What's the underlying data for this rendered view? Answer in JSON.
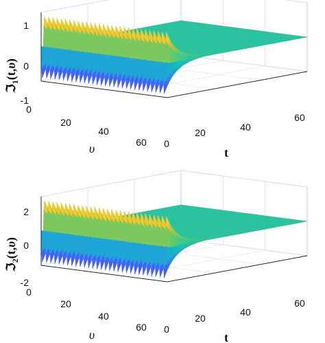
{
  "chart_data": [
    {
      "type": "surface",
      "panel": "top",
      "zlabel": "ℑ₁(t,υ)",
      "zlabel_main": "ℑ",
      "zlabel_sub": "1",
      "zlabel_args": "(t,",
      "zlabel_var": "υ",
      "zlabel_close": ")",
      "xlabel": "υ",
      "ylabel": "t",
      "xlim": [
        0,
        60
      ],
      "ylim": [
        0,
        60
      ],
      "zlim": [
        -1,
        1
      ],
      "x_ticks": [
        "20",
        "40",
        "60"
      ],
      "y_ticks": [
        "0",
        "20",
        "40",
        "60"
      ],
      "z_ticks": [
        "-1",
        "0",
        "1"
      ],
      "amplitude_at_t0": 0.9,
      "oscillation_periods": 30,
      "decay_time": 5,
      "grid": true,
      "colormap": "parula"
    },
    {
      "type": "surface",
      "panel": "bottom",
      "zlabel": "ℑ₂(t,υ)",
      "zlabel_main": "ℑ",
      "zlabel_sub": "2",
      "zlabel_args": "(t,",
      "zlabel_var": "υ",
      "zlabel_close": ")",
      "xlabel": "υ",
      "ylabel": "t",
      "xlim": [
        0,
        60
      ],
      "ylim": [
        0,
        60
      ],
      "zlim": [
        -2,
        2
      ],
      "x_ticks": [
        "20",
        "40",
        "60"
      ],
      "y_ticks": [
        "0",
        "20",
        "40",
        "60"
      ],
      "z_ticks": [
        "-2",
        "0",
        "2"
      ],
      "amplitude_at_t0": 1.8,
      "oscillation_periods": 30,
      "decay_time": 5,
      "grid": true,
      "colormap": "parula"
    }
  ]
}
